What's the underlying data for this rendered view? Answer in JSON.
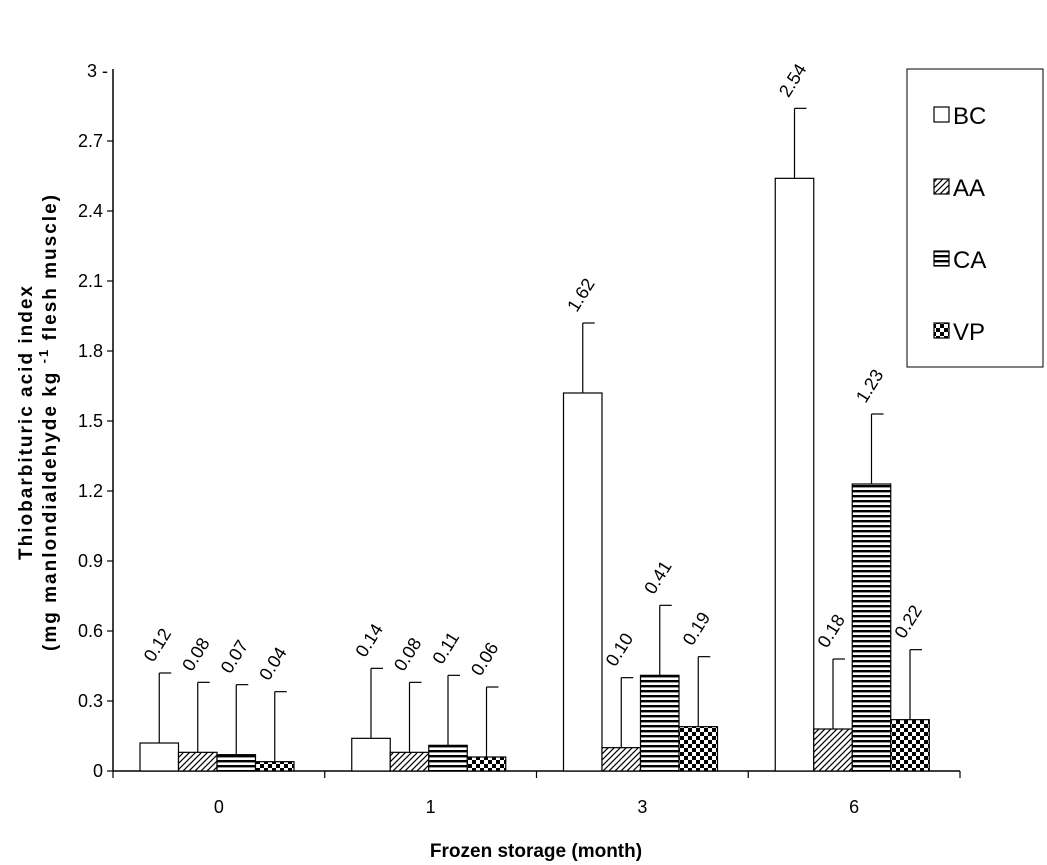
{
  "chart_data": {
    "type": "bar",
    "xlabel": "Frozen storage (month)",
    "ylabel": "Thiobarbituric acid index",
    "ylabel_units": "(mg manlondialdehyde kg",
    "ylabel_sup": "-1",
    "ylabel_units_tail": "flesh muscle)",
    "categories": [
      "0",
      "1",
      "3",
      "6"
    ],
    "ylim": [
      0,
      3
    ],
    "yticks": [
      "0",
      "0.3",
      "0.6",
      "0.9",
      "1.2",
      "1.5",
      "1.8",
      "2.1",
      "2.4",
      "2.7",
      "3"
    ],
    "error": 0.3,
    "legend_position": "top-right",
    "series": [
      {
        "name": "BC",
        "values": [
          0.12,
          0.14,
          1.62,
          2.54
        ],
        "labels": [
          "0.12",
          "0.14",
          "1.62",
          "2.54"
        ],
        "pattern": "white"
      },
      {
        "name": "AA",
        "values": [
          0.08,
          0.08,
          0.1,
          0.18
        ],
        "labels": [
          "0.08",
          "0.08",
          "0.10",
          "0.18"
        ],
        "pattern": "diagonal"
      },
      {
        "name": "CA",
        "values": [
          0.07,
          0.11,
          0.41,
          1.23
        ],
        "labels": [
          "0.07",
          "0.11",
          "0.41",
          "1.23"
        ],
        "pattern": "horizontal"
      },
      {
        "name": "VP",
        "values": [
          0.04,
          0.06,
          0.19,
          0.22
        ],
        "labels": [
          "0.04",
          "0.06",
          "0.19",
          "0.22"
        ],
        "pattern": "checker"
      }
    ]
  }
}
